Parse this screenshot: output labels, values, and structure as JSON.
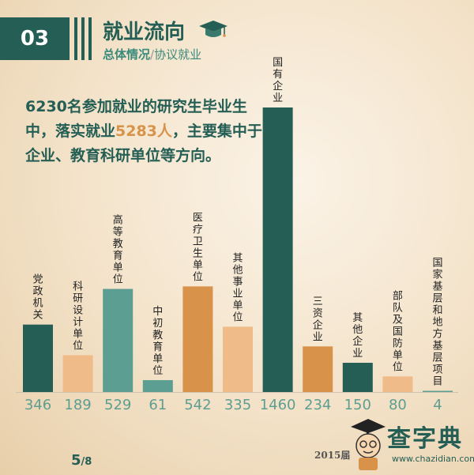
{
  "header": {
    "section_number": "03",
    "title": "就业流向",
    "subtitle_main": "总体情况",
    "subtitle_sep": "/",
    "subtitle_sub": "协议就业"
  },
  "intro": {
    "part1": "6230名参加就业的研究生毕业生中，落实就业",
    "highlight": "5283人",
    "part2": "，主要集中于企业、教育科研单位等方向。"
  },
  "chart_data": {
    "type": "bar",
    "categories": [
      "党政机关",
      "科研设计单位",
      "高等教育单位",
      "中初教育单位",
      "医疗卫生单位",
      "其他事业单位",
      "国有企业",
      "三资企业",
      "其他企业",
      "部队及国防单位",
      "国家基层和地方基层项目"
    ],
    "values": [
      346,
      189,
      529,
      61,
      542,
      335,
      1460,
      234,
      150,
      80,
      4
    ],
    "colors": [
      "#245e54",
      "#efbb88",
      "#5d9e92",
      "#5d9e92",
      "#d8924a",
      "#efbb88",
      "#245e54",
      "#d8924a",
      "#245e54",
      "#efbb88",
      "#5d9e92"
    ],
    "ylim": [
      0,
      1460
    ],
    "value_label_color": "#5d9e92",
    "grid": false,
    "legend": "none"
  },
  "footer": {
    "page_current": "5",
    "page_sep": "/",
    "page_total": "8",
    "year_text": "2015届",
    "logo_text": "查字典",
    "logo_url": "www.chazidian.com"
  }
}
